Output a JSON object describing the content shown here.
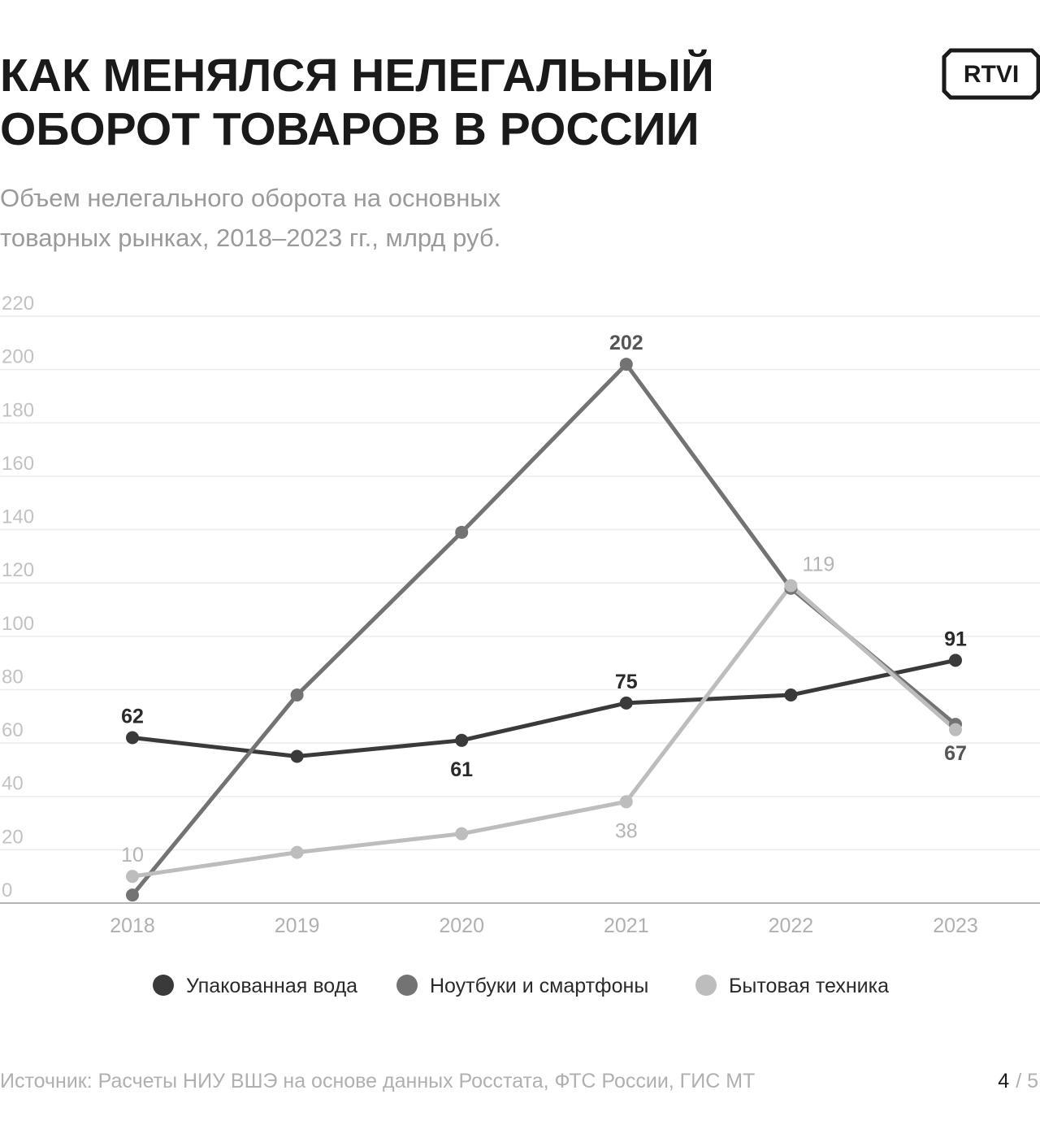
{
  "logo": "RTVI",
  "chart_data": {
    "type": "line",
    "title": [
      "КАК МЕНЯЛСЯ НЕЛЕГАЛЬНЫЙ",
      "ОБОРОТ ТОВАРОВ В РОССИИ"
    ],
    "subtitle": [
      "Объем нелегального оборота на основных",
      "товарных рынках, 2018–2023 гг., млрд руб."
    ],
    "categories": [
      "2018",
      "2019",
      "2020",
      "2021",
      "2022",
      "2023"
    ],
    "series": [
      {
        "name": "Упакованная вода",
        "color": "#3a3a3a",
        "values": [
          62,
          55,
          61,
          75,
          78,
          91
        ],
        "value_labels": [
          "62",
          null,
          "61",
          "75",
          null,
          "91"
        ]
      },
      {
        "name": "Ноутбуки и смартфоны",
        "color": "#737373",
        "values": [
          3,
          78,
          139,
          202,
          118,
          67
        ],
        "value_labels": [
          null,
          null,
          null,
          "202",
          null,
          "67"
        ]
      },
      {
        "name": "Бытовая техника",
        "color": "#bdbdbd",
        "values": [
          10,
          19,
          26,
          38,
          119,
          65
        ],
        "value_labels": [
          "10",
          null,
          null,
          "38",
          "119",
          null
        ]
      }
    ],
    "ylim": [
      0,
      220
    ],
    "yticks": [
      0,
      20,
      40,
      60,
      80,
      100,
      120,
      140,
      160,
      180,
      200,
      220
    ],
    "grid": true,
    "legend": "bottom",
    "source": "Источник: Расчеты НИУ ВШЭ на основе данных Росстата, ФТС России, ГИС МТ"
  },
  "pagination": {
    "current": "4",
    "total": "/ 5"
  }
}
